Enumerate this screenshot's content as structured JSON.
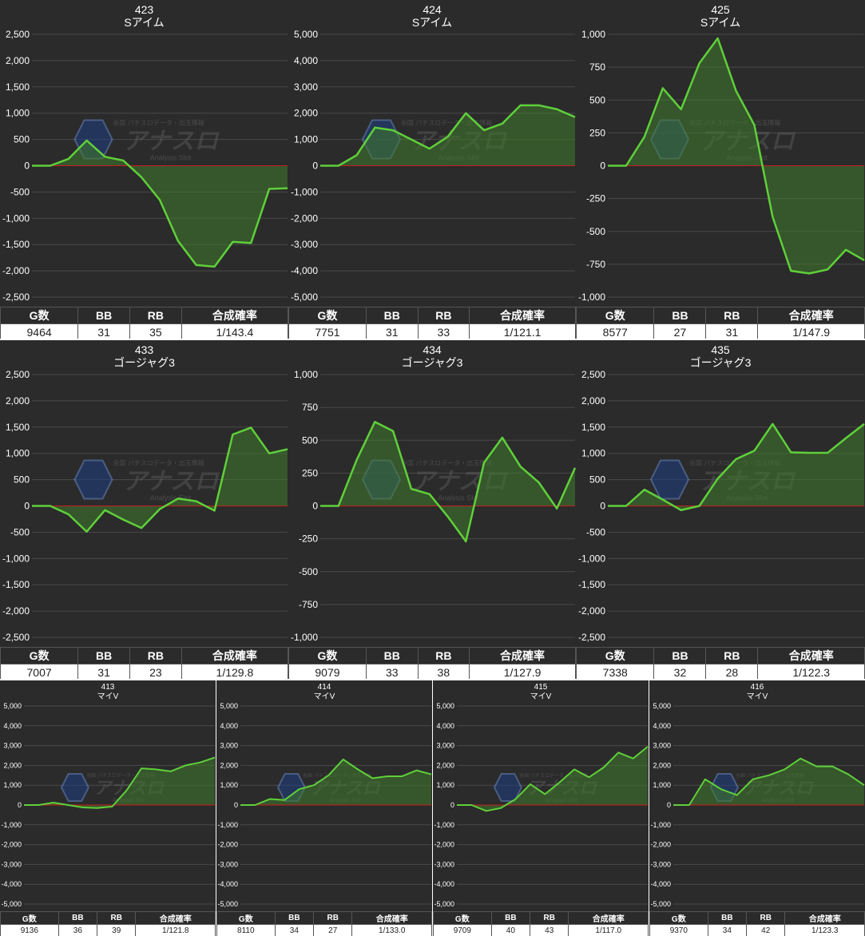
{
  "stats_headers": [
    "G数",
    "BB",
    "RB",
    "合成確率"
  ],
  "watermark": {
    "text": "アナスロ",
    "sub_text": "Analysis Slot",
    "top_text": "全国 パチスロデータ・出玉情報"
  },
  "colors": {
    "background": "#2b2b2b",
    "line": "#5fd03a",
    "fill": "#3f7a2c",
    "zero_line": "#c81e1e",
    "grid": "#4a4a4a",
    "text": "#ffffff"
  },
  "chart_data": [
    {
      "type": "area",
      "title": "423",
      "subtitle": "Sアイム",
      "ylim": [
        -2500,
        2500
      ],
      "yticks": [
        "2,500",
        "2,000",
        "1,500",
        "1,000",
        "500",
        "0",
        "-500",
        "-1,000",
        "-1,500",
        "-2,000",
        "-2,500"
      ],
      "values": [
        0,
        0,
        130,
        480,
        170,
        100,
        -220,
        -650,
        -1430,
        -1890,
        -1920,
        -1450,
        -1470,
        -440,
        -430
      ],
      "stats": {
        "g": "9464",
        "bb": "31",
        "rb": "35",
        "prob": "1/143.4"
      }
    },
    {
      "type": "area",
      "title": "424",
      "subtitle": "Sアイム",
      "ylim": [
        -5000,
        5000
      ],
      "yticks": [
        "5,000",
        "4,000",
        "3,000",
        "2,000",
        "1,000",
        "0",
        "-1,000",
        "-2,000",
        "-3,000",
        "-4,000",
        "-5,000"
      ],
      "values": [
        0,
        0,
        400,
        1450,
        1350,
        1000,
        650,
        1100,
        2000,
        1350,
        1600,
        2300,
        2300,
        2150,
        1850
      ],
      "stats": {
        "g": "7751",
        "bb": "31",
        "rb": "33",
        "prob": "1/121.1"
      }
    },
    {
      "type": "area",
      "title": "425",
      "subtitle": "Sアイム",
      "ylim": [
        -1000,
        1000
      ],
      "yticks": [
        "1,000",
        "750",
        "500",
        "250",
        "0",
        "-250",
        "-500",
        "-750",
        "-1,000"
      ],
      "values": [
        0,
        0,
        220,
        590,
        430,
        780,
        970,
        570,
        310,
        -390,
        -800,
        -820,
        -790,
        -640,
        -720
      ],
      "stats": {
        "g": "8577",
        "bb": "27",
        "rb": "31",
        "prob": "1/147.9"
      }
    },
    {
      "type": "area",
      "title": "433",
      "subtitle": "ゴージャグ3",
      "ylim": [
        -2500,
        2500
      ],
      "yticks": [
        "2,500",
        "2,000",
        "1,500",
        "1,000",
        "500",
        "0",
        "-500",
        "-1,000",
        "-1,500",
        "-2,000",
        "-2,500"
      ],
      "values": [
        0,
        0,
        -160,
        -490,
        -80,
        -260,
        -420,
        -60,
        140,
        90,
        -90,
        1360,
        1490,
        1000,
        1080
      ],
      "stats": {
        "g": "7007",
        "bb": "31",
        "rb": "23",
        "prob": "1/129.8"
      }
    },
    {
      "type": "area",
      "title": "434",
      "subtitle": "ゴージャグ3",
      "ylim": [
        -1000,
        1000
      ],
      "yticks": [
        "1,000",
        "750",
        "500",
        "250",
        "0",
        "-250",
        "-500",
        "-750",
        "-1,000"
      ],
      "values": [
        0,
        0,
        350,
        640,
        570,
        130,
        90,
        -80,
        -270,
        330,
        520,
        300,
        180,
        -20,
        290
      ],
      "stats": {
        "g": "9079",
        "bb": "33",
        "rb": "38",
        "prob": "1/127.9"
      }
    },
    {
      "type": "area",
      "title": "435",
      "subtitle": "ゴージャグ3",
      "ylim": [
        -2500,
        2500
      ],
      "yticks": [
        "2,500",
        "2,000",
        "1,500",
        "1,000",
        "500",
        "0",
        "-500",
        "-1,000",
        "-1,500",
        "-2,000",
        "-2,500"
      ],
      "values": [
        0,
        0,
        310,
        120,
        -80,
        0,
        520,
        890,
        1050,
        1560,
        1020,
        1010,
        1010,
        1290,
        1560
      ],
      "stats": {
        "g": "7338",
        "bb": "32",
        "rb": "28",
        "prob": "1/122.3"
      }
    },
    {
      "type": "area",
      "title": "413",
      "subtitle": "マイV",
      "ylim": [
        -5000,
        5000
      ],
      "yticks": [
        "5,000",
        "4,000",
        "3,000",
        "2,000",
        "1,000",
        "0",
        "-1,000",
        "-2,000",
        "-3,000",
        "-4,000",
        "-5,000"
      ],
      "values": [
        0,
        0,
        120,
        0,
        -120,
        -150,
        -80,
        750,
        1850,
        1800,
        1700,
        2000,
        2150,
        2400
      ],
      "stats": {
        "g": "9136",
        "bb": "36",
        "rb": "39",
        "prob": "1/121.8"
      }
    },
    {
      "type": "area",
      "title": "414",
      "subtitle": "マイV",
      "ylim": [
        -5000,
        5000
      ],
      "yticks": [
        "5,000",
        "4,000",
        "3,000",
        "2,000",
        "1,000",
        "0",
        "-1,000",
        "-2,000",
        "-3,000",
        "-4,000",
        "-5,000"
      ],
      "values": [
        0,
        0,
        300,
        250,
        800,
        1000,
        1500,
        2300,
        1800,
        1350,
        1450,
        1450,
        1750,
        1550
      ],
      "stats": {
        "g": "8110",
        "bb": "34",
        "rb": "27",
        "prob": "1/133.0"
      }
    },
    {
      "type": "area",
      "title": "415",
      "subtitle": "マイV",
      "ylim": [
        -5000,
        5000
      ],
      "yticks": [
        "5,000",
        "4,000",
        "3,000",
        "2,000",
        "1,000",
        "0",
        "-1,000",
        "-2,000",
        "-3,000",
        "-4,000",
        "-5,000"
      ],
      "values": [
        0,
        0,
        -300,
        -150,
        300,
        1050,
        550,
        1150,
        1800,
        1400,
        1900,
        2650,
        2350,
        2950
      ],
      "stats": {
        "g": "9709",
        "bb": "40",
        "rb": "43",
        "prob": "1/117.0"
      }
    },
    {
      "type": "area",
      "title": "416",
      "subtitle": "マイV",
      "ylim": [
        -5000,
        5000
      ],
      "yticks": [
        "5,000",
        "4,000",
        "3,000",
        "2,000",
        "1,000",
        "0",
        "-1,000",
        "-2,000",
        "-3,000",
        "-4,000",
        "-5,000"
      ],
      "values": [
        0,
        0,
        1300,
        800,
        500,
        1300,
        1500,
        1800,
        2350,
        1950,
        1950,
        1550,
        1000
      ],
      "stats": {
        "g": "9370",
        "bb": "34",
        "rb": "42",
        "prob": "1/123.3"
      }
    }
  ]
}
